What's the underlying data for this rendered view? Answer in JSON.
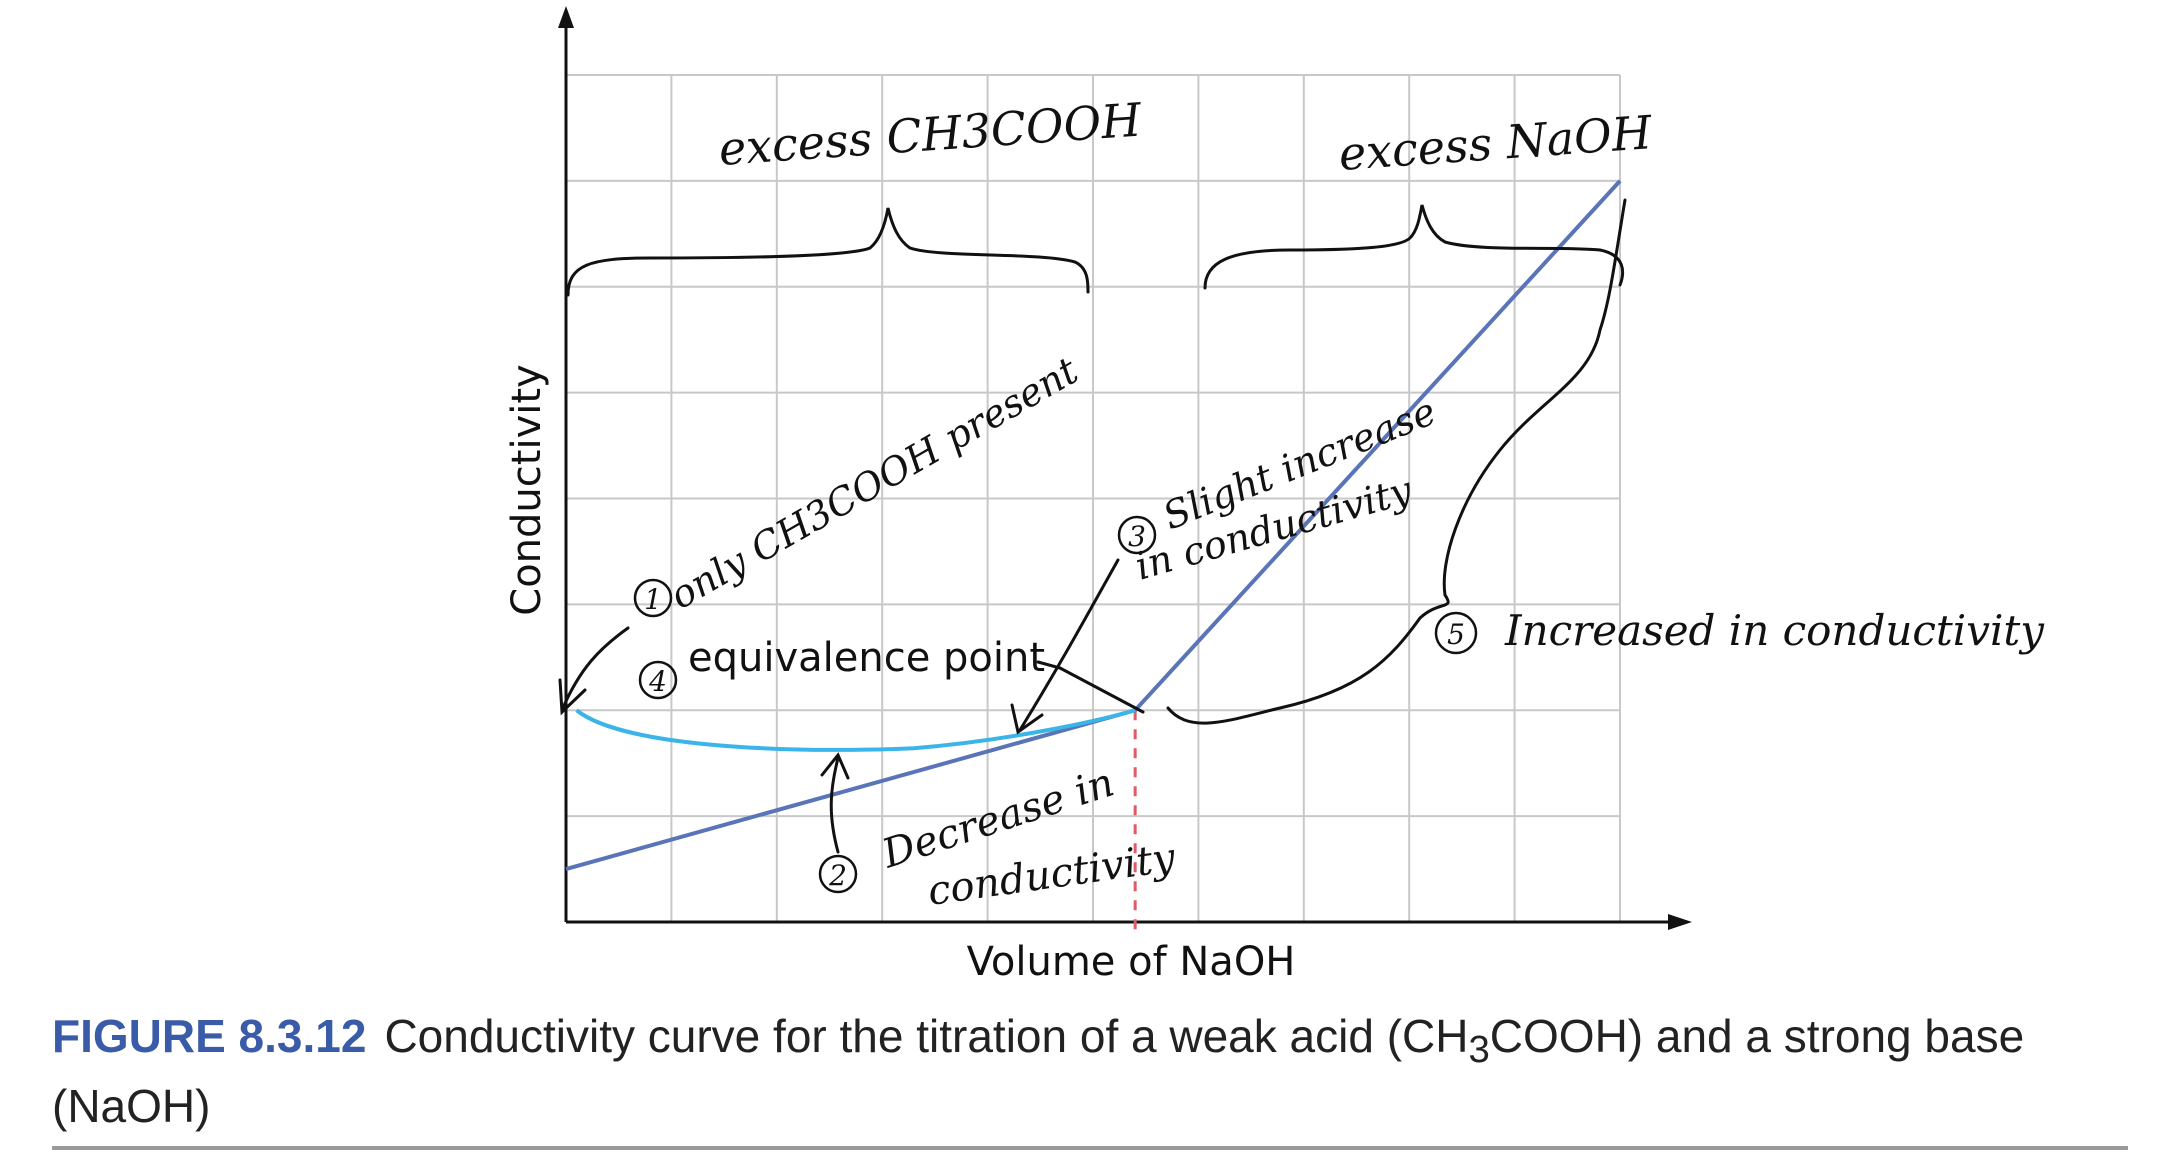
{
  "chart_data": {
    "type": "line",
    "xlabel": "Volume of NaOH",
    "ylabel": "Conductivity",
    "grid": true,
    "x_ticks_shown": false,
    "y_ticks_shown": false,
    "xlim": [
      0,
      10
    ],
    "ylim": [
      0,
      8
    ],
    "series": [
      {
        "values_x": [
          0,
          5.4,
          10
        ],
        "values_y": [
          0.5,
          2,
          7
        ]
      }
    ],
    "equivalence_x": 5.4,
    "annotations": {
      "equivalence_label": "equivalence point",
      "excess_acid": "excess CH3COOH",
      "excess_base": "excess NaOH",
      "note1_num": "1",
      "note1": "only CH3COOH present",
      "note2_num": "2",
      "note2_line1": "Decrease in",
      "note2_line2": "conductivity",
      "note3_num": "3",
      "note3_line1": "Slight increase",
      "note3_line2": "in conductivity",
      "note4_num": "4",
      "note5_num": "5",
      "note5": "Increased in conductivity"
    }
  },
  "caption": {
    "label": "FIGURE 8.3.12",
    "text_a": "Conductivity curve for the titration of a weak acid (CH",
    "sub": "3",
    "text_b": "COOH) and a strong base (NaOH)"
  },
  "colors": {
    "line": "#5a74b8",
    "grid": "#c8c8c8",
    "hand_blue": "#3bb5e8",
    "equiv_dash": "#e05a6a",
    "caption_label": "#3a5ba8"
  }
}
